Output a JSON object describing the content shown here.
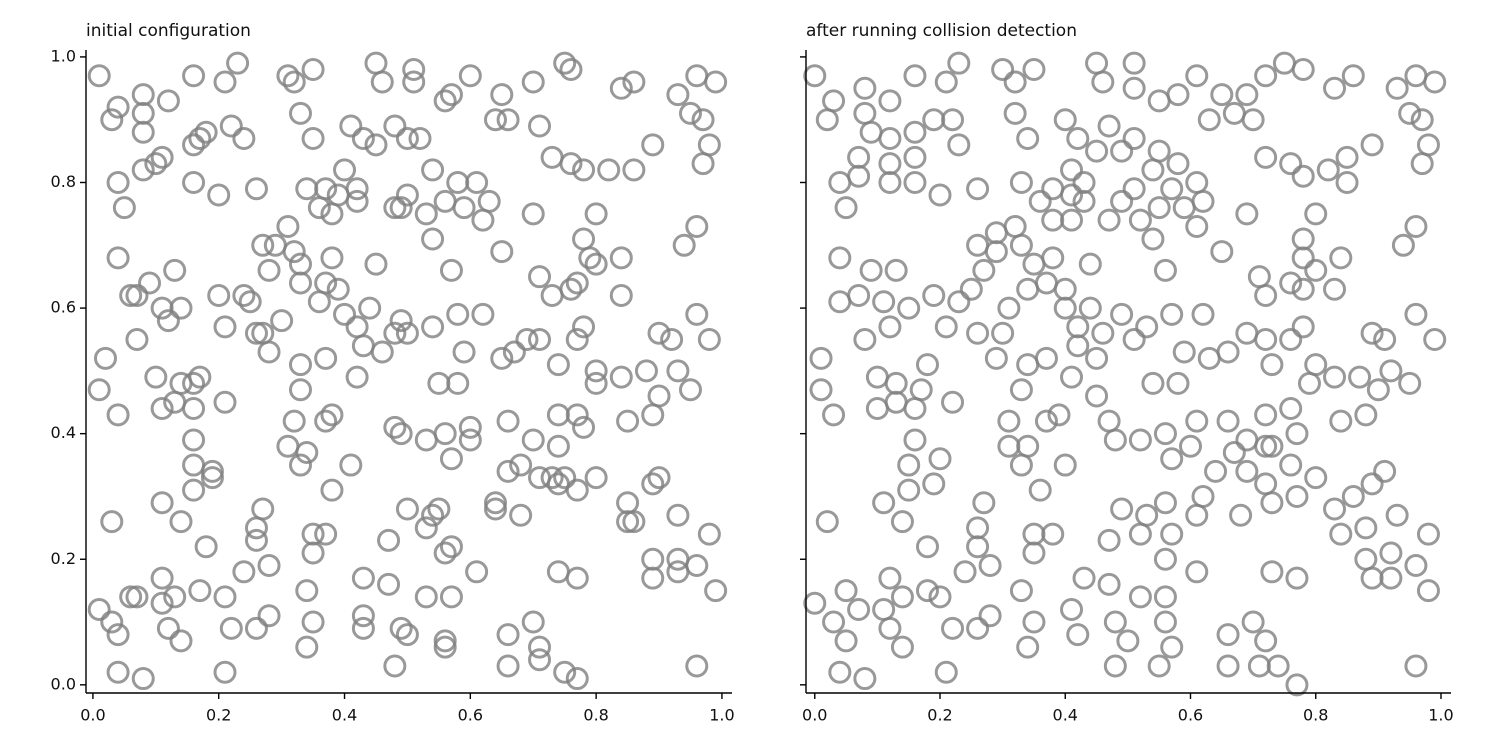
{
  "chart_data": [
    {
      "type": "scatter",
      "title": "initial configuration",
      "color": "#7f7f7f",
      "xlim": [
        -0.011,
        1.016
      ],
      "ylim": [
        -0.013,
        1.011
      ],
      "xticks": [
        {
          "value": 0,
          "label": "0.0"
        },
        0.2,
        0.4,
        0.6,
        0.8,
        {
          "value": 1,
          "label": "1.0"
        }
      ],
      "yticks": [
        {
          "value": 0,
          "label": "0.0"
        },
        0.2,
        0.4,
        0.6,
        0.8,
        {
          "value": 1,
          "label": "1.0"
        }
      ],
      "x": [
        0.01,
        0.03,
        0.04,
        0.08,
        0.08,
        0.12,
        0.16,
        0.21,
        0.23,
        0.31,
        0.32,
        0.35,
        0.45,
        0.46,
        0.51,
        0.51,
        0.56,
        0.57,
        0.6,
        0.65,
        0.7,
        0.75,
        0.76,
        0.84,
        0.86,
        0.96,
        0.99,
        0.93,
        0.95,
        0.97,
        0.64,
        0.66,
        0.71,
        0.5,
        0.52,
        0.48,
        0.45,
        0.43,
        0.41,
        0.33,
        0.35,
        0.24,
        0.22,
        0.18,
        0.17,
        0.16,
        0.08,
        0.1,
        0.11,
        0.08,
        0.04,
        0.05,
        0.16,
        0.2,
        0.26,
        0.34,
        0.37,
        0.39,
        0.4,
        0.42,
        0.36,
        0.38,
        0.42,
        0.48,
        0.49,
        0.5,
        0.53,
        0.54,
        0.54,
        0.56,
        0.58,
        0.59,
        0.61,
        0.62,
        0.63,
        0.7,
        0.73,
        0.76,
        0.78,
        0.82,
        0.86,
        0.89,
        0.98,
        0.97,
        0.8,
        0.96,
        0.94,
        0.78,
        0.79,
        0.8,
        0.84,
        0.84,
        0.76,
        0.77,
        0.73,
        0.71,
        0.65,
        0.57,
        0.62,
        0.58,
        0.45,
        0.44,
        0.4,
        0.42,
        0.38,
        0.39,
        0.37,
        0.36,
        0.33,
        0.33,
        0.32,
        0.31,
        0.29,
        0.27,
        0.28,
        0.24,
        0.25,
        0.2,
        0.21,
        0.3,
        0.27,
        0.28,
        0.26,
        0.33,
        0.37,
        0.43,
        0.46,
        0.48,
        0.49,
        0.5,
        0.54,
        0.59,
        0.65,
        0.67,
        0.69,
        0.71,
        0.74,
        0.77,
        0.78,
        0.8,
        0.8,
        0.84,
        0.88,
        0.9,
        0.92,
        0.93,
        0.98,
        0.96,
        0.95,
        0.9,
        0.89,
        0.85,
        0.78,
        0.77,
        0.74,
        0.74,
        0.7,
        0.66,
        0.6,
        0.6,
        0.56,
        0.58,
        0.55,
        0.53,
        0.48,
        0.49,
        0.42,
        0.38,
        0.37,
        0.33,
        0.32,
        0.34,
        0.31,
        0.33,
        0.38,
        0.41,
        0.35,
        0.35,
        0.37,
        0.47,
        0.5,
        0.53,
        0.54,
        0.55,
        0.56,
        0.57,
        0.57,
        0.61,
        0.64,
        0.64,
        0.66,
        0.68,
        0.68,
        0.71,
        0.73,
        0.74,
        0.75,
        0.77,
        0.8,
        0.85,
        0.85,
        0.86,
        0.89,
        0.9,
        0.93,
        0.93,
        0.93,
        0.89,
        0.89,
        0.96,
        0.98,
        0.99,
        0.96,
        0.77,
        0.74,
        0.77,
        0.75,
        0.71,
        0.7,
        0.71,
        0.66,
        0.66,
        0.56,
        0.56,
        0.57,
        0.53,
        0.5,
        0.49,
        0.48,
        0.47,
        0.43,
        0.43,
        0.43,
        0.35,
        0.34,
        0.34,
        0.28,
        0.28,
        0.27,
        0.26,
        0.26,
        0.26,
        0.24,
        0.22,
        0.21,
        0.21,
        0.18,
        0.17,
        0.13,
        0.14,
        0.12,
        0.11,
        0.11,
        0.07,
        0.06,
        0.08,
        0.04,
        0.04,
        0.03,
        0.01,
        0.03,
        0.11,
        0.14,
        0.16,
        0.16,
        0.19,
        0.19,
        0.16,
        0.16,
        0.17,
        0.16,
        0.14,
        0.13,
        0.11,
        0.1,
        0.04,
        0.01,
        0.02,
        0.07,
        0.06,
        0.07,
        0.09,
        0.11,
        0.12,
        0.14,
        0.13,
        0.04,
        0.21
      ],
      "values": [
        0.97,
        0.9,
        0.92,
        0.94,
        0.91,
        0.93,
        0.97,
        0.96,
        0.99,
        0.97,
        0.96,
        0.98,
        0.99,
        0.96,
        0.98,
        0.96,
        0.93,
        0.94,
        0.97,
        0.94,
        0.96,
        0.99,
        0.98,
        0.95,
        0.96,
        0.97,
        0.96,
        0.94,
        0.91,
        0.9,
        0.9,
        0.9,
        0.89,
        0.87,
        0.87,
        0.89,
        0.86,
        0.87,
        0.89,
        0.91,
        0.87,
        0.87,
        0.89,
        0.88,
        0.87,
        0.86,
        0.88,
        0.83,
        0.84,
        0.82,
        0.8,
        0.76,
        0.8,
        0.78,
        0.79,
        0.79,
        0.79,
        0.78,
        0.82,
        0.79,
        0.76,
        0.75,
        0.77,
        0.76,
        0.76,
        0.78,
        0.75,
        0.71,
        0.82,
        0.77,
        0.8,
        0.76,
        0.8,
        0.74,
        0.77,
        0.75,
        0.84,
        0.83,
        0.82,
        0.82,
        0.82,
        0.86,
        0.86,
        0.83,
        0.75,
        0.73,
        0.7,
        0.71,
        0.68,
        0.67,
        0.68,
        0.62,
        0.63,
        0.64,
        0.62,
        0.65,
        0.69,
        0.66,
        0.59,
        0.59,
        0.67,
        0.6,
        0.59,
        0.57,
        0.68,
        0.63,
        0.64,
        0.61,
        0.67,
        0.64,
        0.69,
        0.73,
        0.7,
        0.7,
        0.66,
        0.62,
        0.61,
        0.62,
        0.57,
        0.58,
        0.56,
        0.53,
        0.56,
        0.51,
        0.52,
        0.54,
        0.53,
        0.56,
        0.58,
        0.56,
        0.57,
        0.53,
        0.52,
        0.53,
        0.55,
        0.55,
        0.51,
        0.55,
        0.57,
        0.5,
        0.48,
        0.49,
        0.5,
        0.56,
        0.55,
        0.5,
        0.55,
        0.59,
        0.47,
        0.46,
        0.43,
        0.42,
        0.41,
        0.43,
        0.43,
        0.38,
        0.39,
        0.42,
        0.41,
        0.39,
        0.4,
        0.48,
        0.48,
        0.39,
        0.41,
        0.4,
        0.49,
        0.43,
        0.42,
        0.47,
        0.42,
        0.37,
        0.38,
        0.35,
        0.31,
        0.35,
        0.24,
        0.21,
        0.24,
        0.23,
        0.28,
        0.25,
        0.27,
        0.28,
        0.21,
        0.22,
        0.36,
        0.18,
        0.28,
        0.29,
        0.34,
        0.35,
        0.27,
        0.33,
        0.33,
        0.32,
        0.33,
        0.31,
        0.33,
        0.29,
        0.26,
        0.26,
        0.32,
        0.33,
        0.27,
        0.2,
        0.18,
        0.2,
        0.17,
        0.19,
        0.24,
        0.15,
        0.03,
        0.17,
        0.18,
        0.01,
        0.02,
        0.06,
        0.1,
        0.04,
        0.08,
        0.03,
        0.07,
        0.06,
        0.14,
        0.14,
        0.08,
        0.09,
        0.03,
        0.16,
        0.11,
        0.09,
        0.17,
        0.1,
        0.06,
        0.15,
        0.11,
        0.19,
        0.28,
        0.25,
        0.23,
        0.09,
        0.18,
        0.09,
        0.02,
        0.14,
        0.22,
        0.15,
        0.14,
        0.07,
        0.09,
        0.17,
        0.13,
        0.14,
        0.14,
        0.01,
        0.02,
        0.08,
        0.1,
        0.12,
        0.26,
        0.29,
        0.26,
        0.31,
        0.35,
        0.34,
        0.33,
        0.39,
        0.44,
        0.49,
        0.48,
        0.48,
        0.45,
        0.44,
        0.49,
        0.43,
        0.47,
        0.52,
        0.55,
        0.62,
        0.62,
        0.64,
        0.6,
        0.58,
        0.6,
        0.66,
        0.68,
        0.45
      ]
    },
    {
      "type": "scatter",
      "title": "after running collision detection",
      "color": "#7f7f7f",
      "sharey": true,
      "xlim": [
        -0.014,
        1.016
      ],
      "ylim": [
        -0.013,
        1.011
      ],
      "xticks": [
        {
          "value": 0,
          "label": "0.0"
        },
        0.2,
        0.4,
        0.6,
        0.8,
        {
          "value": 1,
          "label": "1.0"
        }
      ],
      "yticks": [
        0,
        0.2,
        0.4,
        0.6,
        0.8,
        1
      ],
      "x": [
        0.0,
        0.03,
        0.02,
        0.08,
        0.08,
        0.12,
        0.16,
        0.21,
        0.23,
        0.3,
        0.32,
        0.35,
        0.45,
        0.46,
        0.51,
        0.51,
        0.55,
        0.58,
        0.61,
        0.65,
        0.69,
        0.72,
        0.75,
        0.78,
        0.83,
        0.86,
        0.96,
        0.99,
        0.93,
        0.95,
        0.97,
        0.98,
        0.97,
        0.63,
        0.67,
        0.7,
        0.05,
        0.04,
        0.07,
        0.07,
        0.09,
        0.12,
        0.12,
        0.12,
        0.16,
        0.16,
        0.16,
        0.19,
        0.22,
        0.23,
        0.2,
        0.26,
        0.32,
        0.34,
        0.33,
        0.36,
        0.38,
        0.38,
        0.41,
        0.41,
        0.43,
        0.41,
        0.43,
        0.4,
        0.42,
        0.45,
        0.47,
        0.49,
        0.51,
        0.47,
        0.49,
        0.51,
        0.54,
        0.55,
        0.52,
        0.54,
        0.55,
        0.57,
        0.58,
        0.59,
        0.61,
        0.61,
        0.62,
        0.69,
        0.72,
        0.76,
        0.78,
        0.82,
        0.85,
        0.85,
        0.89,
        0.8,
        0.96,
        0.94,
        0.78,
        0.78,
        0.8,
        0.84,
        0.83,
        0.76,
        0.78,
        0.72,
        0.71,
        0.65,
        0.56,
        0.62,
        0.57,
        0.44,
        0.44,
        0.4,
        0.42,
        0.38,
        0.4,
        0.35,
        0.37,
        0.34,
        0.33,
        0.32,
        0.29,
        0.26,
        0.27,
        0.29,
        0.25,
        0.23,
        0.19,
        0.21,
        0.31,
        0.26,
        0.29,
        0.3,
        0.34,
        0.37,
        0.42,
        0.45,
        0.46,
        0.49,
        0.51,
        0.53,
        0.59,
        0.63,
        0.66,
        0.69,
        0.72,
        0.73,
        0.76,
        0.78,
        0.8,
        0.79,
        0.83,
        0.87,
        0.89,
        0.91,
        0.92,
        0.99,
        0.96,
        0.95,
        0.9,
        0.88,
        0.84,
        0.77,
        0.76,
        0.72,
        0.73,
        0.69,
        0.66,
        0.61,
        0.6,
        0.56,
        0.58,
        0.54,
        0.52,
        0.48,
        0.47,
        0.45,
        0.41,
        0.39,
        0.37,
        0.33,
        0.31,
        0.34,
        0.31,
        0.33,
        0.36,
        0.4,
        0.35,
        0.35,
        0.38,
        0.47,
        0.49,
        0.52,
        0.53,
        0.56,
        0.57,
        0.56,
        0.57,
        0.61,
        0.61,
        0.62,
        0.64,
        0.67,
        0.68,
        0.69,
        0.72,
        0.72,
        0.73,
        0.76,
        0.77,
        0.8,
        0.83,
        0.84,
        0.86,
        0.88,
        0.89,
        0.91,
        0.93,
        0.92,
        0.92,
        0.88,
        0.89,
        0.96,
        0.98,
        0.98,
        0.96,
        0.77,
        0.73,
        0.77,
        0.74,
        0.72,
        0.7,
        0.71,
        0.66,
        0.66,
        0.55,
        0.57,
        0.56,
        0.56,
        0.52,
        0.5,
        0.48,
        0.48,
        0.47,
        0.41,
        0.42,
        0.43,
        0.35,
        0.34,
        0.33,
        0.28,
        0.28,
        0.27,
        0.26,
        0.26,
        0.26,
        0.24,
        0.22,
        0.21,
        0.2,
        0.18,
        0.18,
        0.14,
        0.14,
        0.12,
        0.12,
        0.11,
        0.07,
        0.05,
        0.08,
        0.04,
        0.05,
        0.03,
        0.0,
        0.02,
        0.11,
        0.14,
        0.15,
        0.15,
        0.2,
        0.19,
        0.16,
        0.16,
        0.18,
        0.17,
        0.13,
        0.13,
        0.1,
        0.1,
        0.03,
        0.01,
        0.01,
        0.08,
        0.07,
        0.04,
        0.09,
        0.11,
        0.12,
        0.15,
        0.13,
        0.04,
        0.22
      ],
      "values": [
        0.97,
        0.93,
        0.9,
        0.95,
        0.91,
        0.93,
        0.97,
        0.96,
        0.99,
        0.98,
        0.96,
        0.98,
        0.99,
        0.96,
        0.99,
        0.95,
        0.93,
        0.94,
        0.97,
        0.94,
        0.94,
        0.97,
        0.99,
        0.98,
        0.95,
        0.97,
        0.97,
        0.96,
        0.95,
        0.91,
        0.9,
        0.86,
        0.83,
        0.9,
        0.91,
        0.9,
        0.76,
        0.8,
        0.84,
        0.81,
        0.88,
        0.87,
        0.83,
        0.8,
        0.8,
        0.84,
        0.88,
        0.9,
        0.9,
        0.86,
        0.78,
        0.79,
        0.91,
        0.87,
        0.8,
        0.77,
        0.79,
        0.74,
        0.82,
        0.78,
        0.8,
        0.74,
        0.77,
        0.9,
        0.87,
        0.85,
        0.89,
        0.85,
        0.87,
        0.74,
        0.77,
        0.79,
        0.82,
        0.85,
        0.74,
        0.71,
        0.76,
        0.79,
        0.83,
        0.76,
        0.8,
        0.73,
        0.77,
        0.75,
        0.84,
        0.83,
        0.81,
        0.82,
        0.84,
        0.8,
        0.86,
        0.75,
        0.73,
        0.7,
        0.71,
        0.68,
        0.66,
        0.68,
        0.63,
        0.64,
        0.63,
        0.62,
        0.65,
        0.69,
        0.66,
        0.59,
        0.59,
        0.67,
        0.6,
        0.6,
        0.57,
        0.68,
        0.63,
        0.67,
        0.64,
        0.63,
        0.7,
        0.73,
        0.72,
        0.7,
        0.66,
        0.69,
        0.63,
        0.61,
        0.62,
        0.57,
        0.6,
        0.56,
        0.52,
        0.56,
        0.51,
        0.52,
        0.54,
        0.52,
        0.56,
        0.59,
        0.55,
        0.57,
        0.53,
        0.52,
        0.53,
        0.56,
        0.55,
        0.51,
        0.55,
        0.57,
        0.51,
        0.48,
        0.49,
        0.49,
        0.56,
        0.55,
        0.5,
        0.55,
        0.59,
        0.48,
        0.47,
        0.43,
        0.42,
        0.4,
        0.44,
        0.43,
        0.38,
        0.39,
        0.42,
        0.42,
        0.38,
        0.4,
        0.48,
        0.48,
        0.39,
        0.39,
        0.42,
        0.46,
        0.49,
        0.43,
        0.42,
        0.47,
        0.42,
        0.38,
        0.38,
        0.35,
        0.31,
        0.35,
        0.24,
        0.21,
        0.24,
        0.23,
        0.28,
        0.24,
        0.27,
        0.29,
        0.24,
        0.2,
        0.36,
        0.18,
        0.27,
        0.3,
        0.34,
        0.37,
        0.27,
        0.34,
        0.32,
        0.38,
        0.29,
        0.35,
        0.3,
        0.33,
        0.28,
        0.24,
        0.3,
        0.25,
        0.32,
        0.34,
        0.27,
        0.21,
        0.17,
        0.2,
        0.17,
        0.19,
        0.24,
        0.15,
        0.03,
        0.17,
        0.18,
        0.0,
        0.03,
        0.07,
        0.1,
        0.03,
        0.08,
        0.03,
        0.03,
        0.06,
        0.1,
        0.14,
        0.14,
        0.07,
        0.1,
        0.03,
        0.16,
        0.12,
        0.08,
        0.17,
        0.1,
        0.06,
        0.15,
        0.11,
        0.19,
        0.29,
        0.25,
        0.22,
        0.09,
        0.18,
        0.09,
        0.02,
        0.14,
        0.22,
        0.15,
        0.14,
        0.06,
        0.09,
        0.17,
        0.12,
        0.12,
        0.15,
        0.01,
        0.02,
        0.07,
        0.1,
        0.13,
        0.26,
        0.29,
        0.26,
        0.31,
        0.35,
        0.36,
        0.32,
        0.39,
        0.44,
        0.51,
        0.47,
        0.48,
        0.45,
        0.44,
        0.49,
        0.43,
        0.47,
        0.52,
        0.55,
        0.62,
        0.61,
        0.66,
        0.61,
        0.57,
        0.6,
        0.66,
        0.68,
        0.45
      ]
    }
  ]
}
